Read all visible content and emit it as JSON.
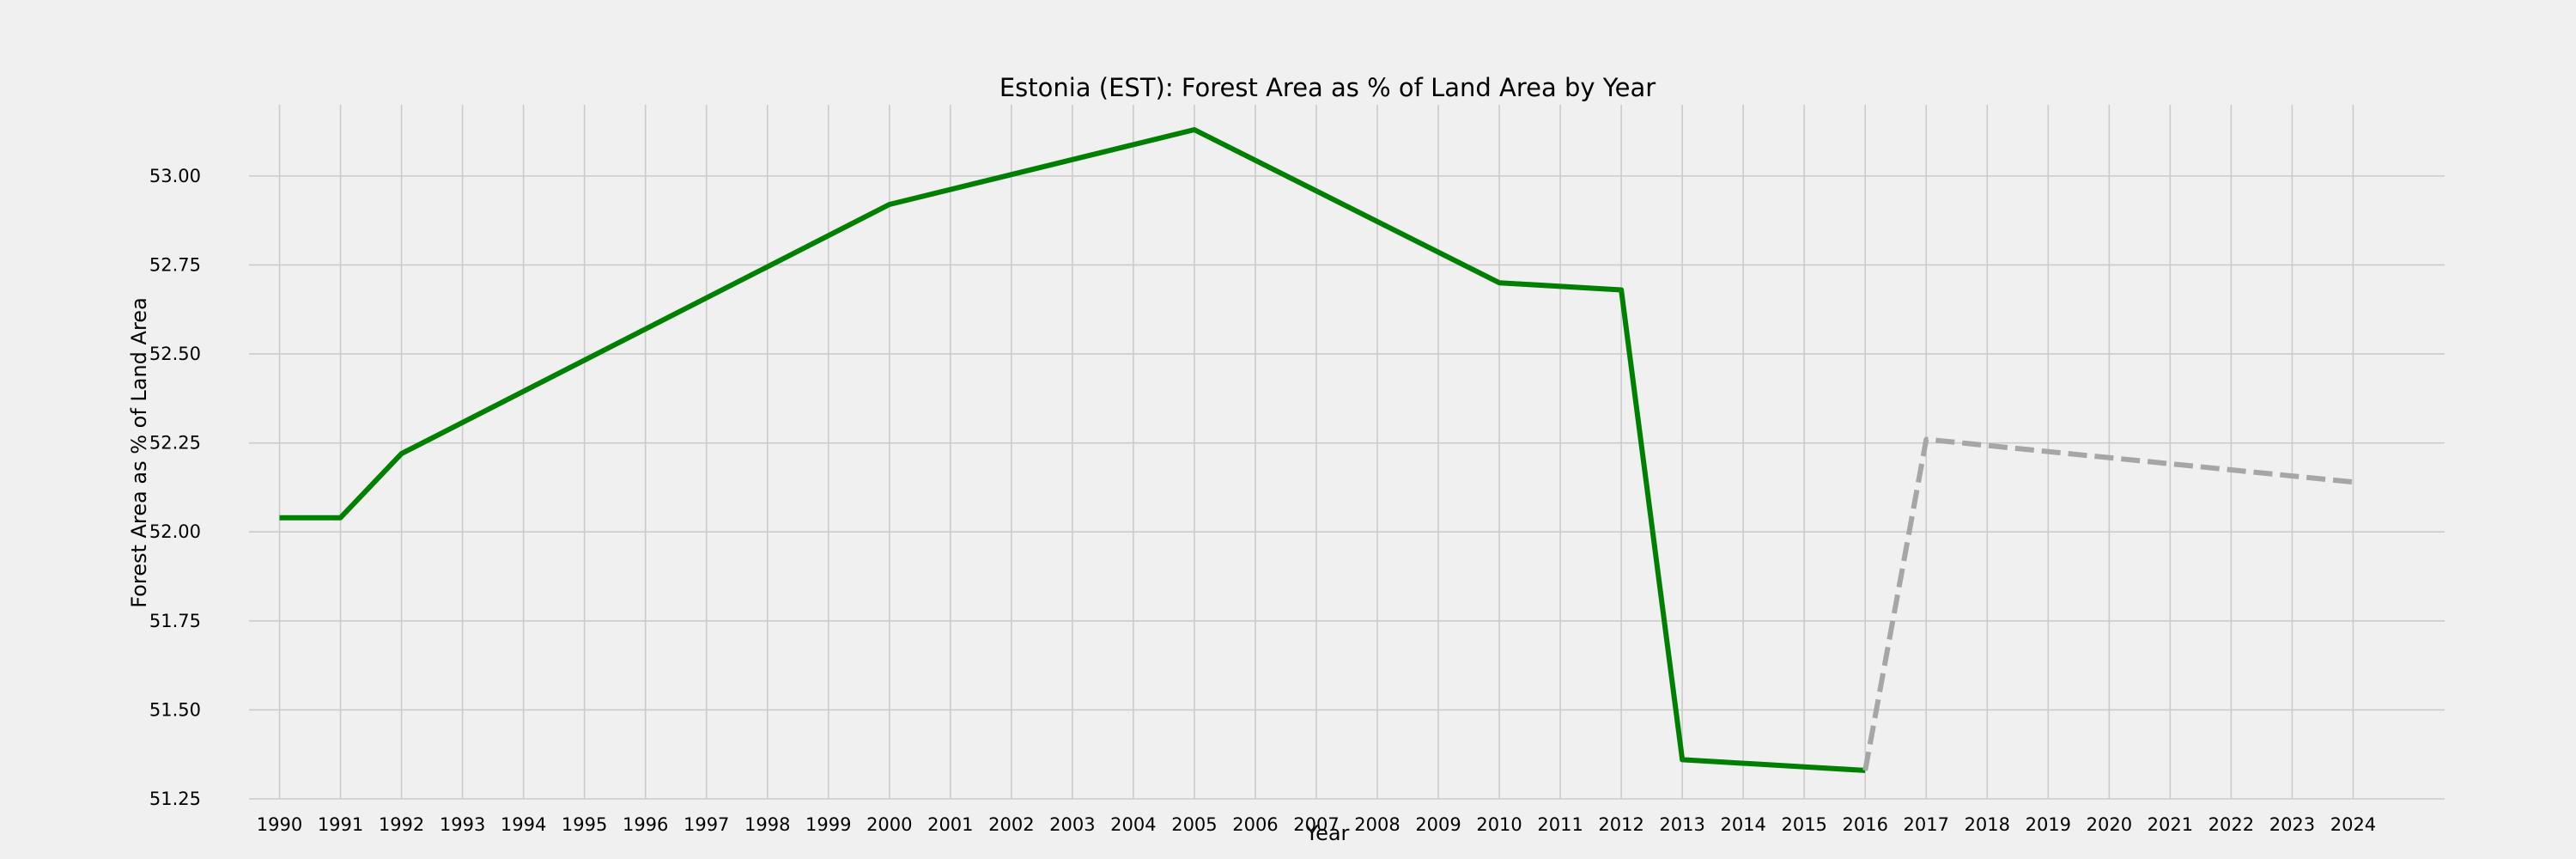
{
  "chart_data": {
    "type": "line",
    "title": "Estonia (EST): Forest Area as % of Land Area by Year",
    "xlabel": "Year",
    "ylabel": "Forest Area as % of Land Area",
    "xlim": [
      1989.5,
      2025.5
    ],
    "ylim": [
      51.25,
      53.2
    ],
    "x_ticks": [
      1990,
      1991,
      1992,
      1993,
      1994,
      1995,
      1996,
      1997,
      1998,
      1999,
      2000,
      2001,
      2002,
      2003,
      2004,
      2005,
      2006,
      2007,
      2008,
      2009,
      2010,
      2011,
      2012,
      2013,
      2014,
      2015,
      2016,
      2017,
      2018,
      2019,
      2020,
      2021,
      2022,
      2023,
      2024
    ],
    "y_ticks": [
      51.25,
      51.5,
      51.75,
      52.0,
      52.25,
      52.5,
      52.75,
      53.0
    ],
    "y_tick_labels": [
      "51.25",
      "51.50",
      "51.75",
      "52.00",
      "52.25",
      "52.50",
      "52.75",
      "53.00"
    ],
    "grid": true,
    "series": [
      {
        "color": "#008000",
        "style": "solid",
        "x": [
          1990,
          1991,
          1992,
          2000,
          2005,
          2010,
          2012,
          2013,
          2016
        ],
        "y": [
          52.04,
          52.04,
          52.22,
          52.92,
          53.13,
          52.7,
          52.68,
          51.36,
          51.33
        ]
      },
      {
        "color": "#a6a6a6",
        "style": "dashed",
        "x": [
          2016,
          2017,
          2024
        ],
        "y": [
          51.33,
          52.26,
          52.14
        ]
      }
    ]
  }
}
